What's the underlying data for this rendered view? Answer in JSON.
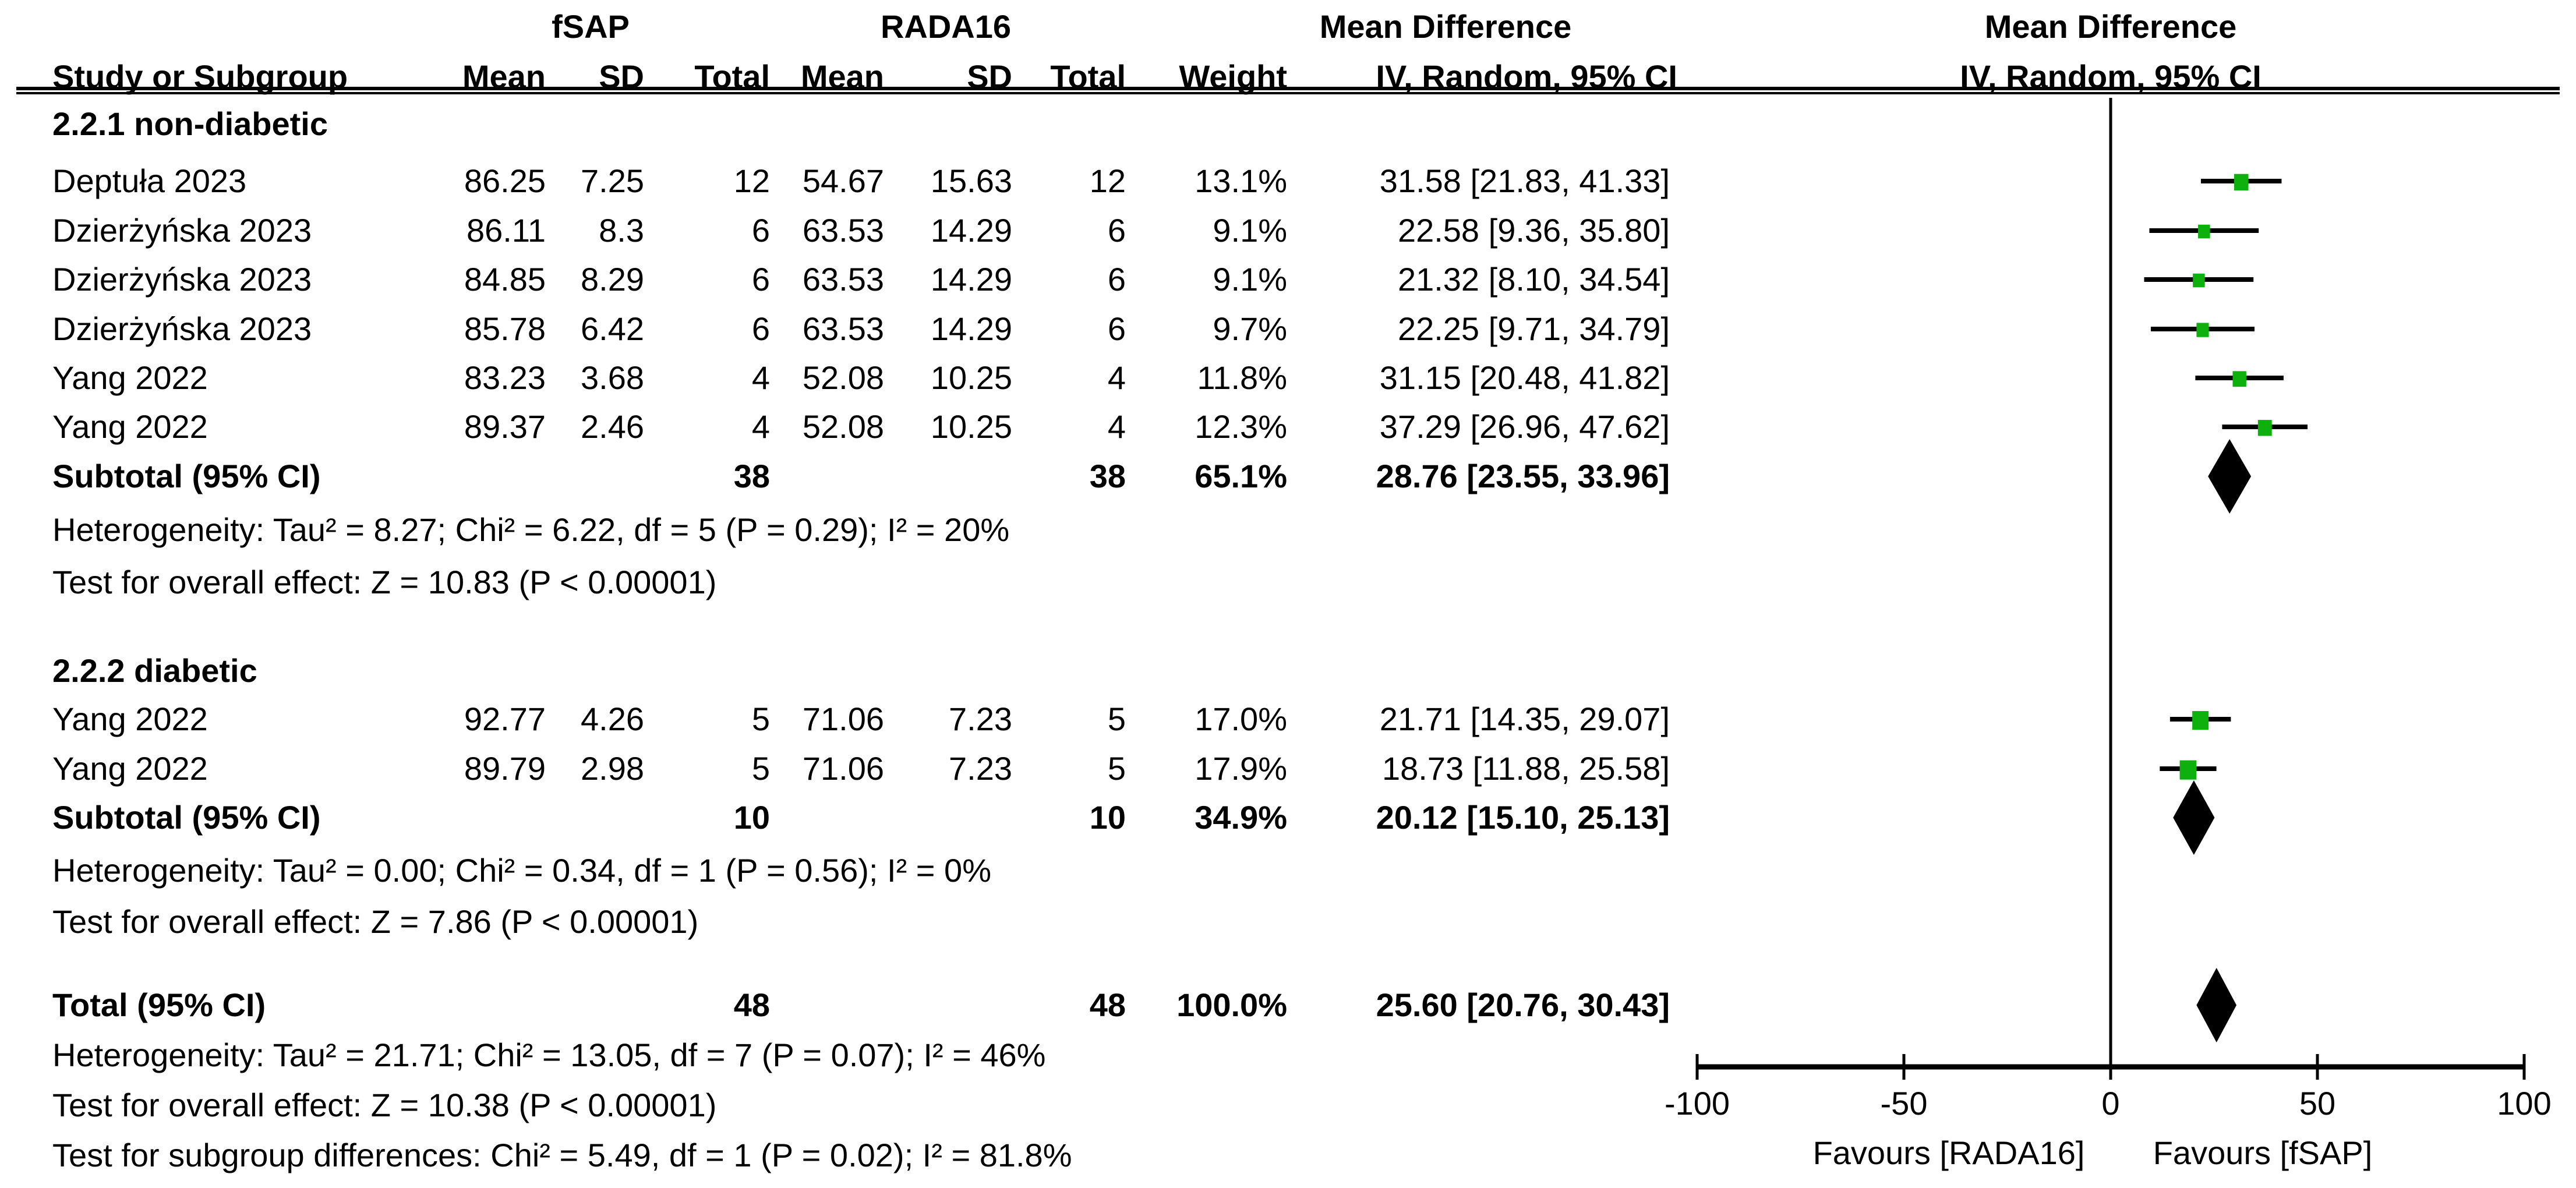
{
  "colors": {
    "effect_square": "#0DB00D",
    "diamond": "#000000",
    "line": "#000000",
    "text": "#000000",
    "background": "#FFFFFF"
  },
  "table_header": {
    "study_col": "Study or Subgroup",
    "group1_name": "fSAP",
    "group2_name": "RADA16",
    "mean_col": "Mean",
    "sd_col": "SD",
    "total_col": "Total",
    "mean_col2": "Mean",
    "sd_col2": "SD",
    "total_col2": "Total",
    "weight_col": "Weight",
    "effect_col_title": "Mean Difference",
    "effect_col_subtitle": "IV, Random, 95% CI",
    "plot_col_title": "Mean Difference",
    "plot_col_subtitle": "IV, Random, 95% CI"
  },
  "axis": {
    "min": -100,
    "max": 100,
    "ticks": [
      -100,
      -50,
      0,
      50,
      100
    ],
    "tick_labels": [
      "-100",
      "-50",
      "0",
      "50",
      "100"
    ],
    "favours_left": "Favours [RADA16]",
    "favours_right": "Favours [fSAP]"
  },
  "chart_data": {
    "type": "scatter",
    "subtype": "forest_plot",
    "effect_measure": "Mean Difference, IV, Random, 95% CI",
    "xlim": [
      -100,
      100
    ],
    "x_ticks": [
      -100,
      -50,
      0,
      50,
      100
    ],
    "groups": [
      {
        "title": "2.2.1 non-diabetic",
        "studies": [
          {
            "study": "Deptuła 2023",
            "mean1": "86.25",
            "sd1": "7.25",
            "n1": "12",
            "mean2": "54.67",
            "sd2": "15.63",
            "n2": "12",
            "weight": "13.1%",
            "ci_text": "31.58 [21.83, 41.33]",
            "md": 31.58,
            "lo": 21.83,
            "hi": 41.33,
            "w": 13.1
          },
          {
            "study": "Dzierżyńska 2023",
            "mean1": "86.11",
            "sd1": "8.3",
            "n1": "6",
            "mean2": "63.53",
            "sd2": "14.29",
            "n2": "6",
            "weight": "9.1%",
            "ci_text": "22.58 [9.36, 35.80]",
            "md": 22.58,
            "lo": 9.36,
            "hi": 35.8,
            "w": 9.1
          },
          {
            "study": "Dzierżyńska 2023",
            "mean1": "84.85",
            "sd1": "8.29",
            "n1": "6",
            "mean2": "63.53",
            "sd2": "14.29",
            "n2": "6",
            "weight": "9.1%",
            "ci_text": "21.32 [8.10, 34.54]",
            "md": 21.32,
            "lo": 8.1,
            "hi": 34.54,
            "w": 9.1
          },
          {
            "study": "Dzierżyńska 2023",
            "mean1": "85.78",
            "sd1": "6.42",
            "n1": "6",
            "mean2": "63.53",
            "sd2": "14.29",
            "n2": "6",
            "weight": "9.7%",
            "ci_text": "22.25 [9.71, 34.79]",
            "md": 22.25,
            "lo": 9.71,
            "hi": 34.79,
            "w": 9.7
          },
          {
            "study": "Yang 2022",
            "mean1": "83.23",
            "sd1": "3.68",
            "n1": "4",
            "mean2": "52.08",
            "sd2": "10.25",
            "n2": "4",
            "weight": "11.8%",
            "ci_text": "31.15 [20.48, 41.82]",
            "md": 31.15,
            "lo": 20.48,
            "hi": 41.82,
            "w": 11.8
          },
          {
            "study": "Yang 2022",
            "mean1": "89.37",
            "sd1": "2.46",
            "n1": "4",
            "mean2": "52.08",
            "sd2": "10.25",
            "n2": "4",
            "weight": "12.3%",
            "ci_text": "37.29 [26.96, 47.62]",
            "md": 37.29,
            "lo": 26.96,
            "hi": 47.62,
            "w": 12.3
          }
        ],
        "subtotal": {
          "label": "Subtotal (95% CI)",
          "n1": "38",
          "n2": "38",
          "weight": "65.1%",
          "ci_text": "28.76 [23.55, 33.96]",
          "md": 28.76,
          "lo": 23.55,
          "hi": 33.96
        },
        "heterogeneity": "Heterogeneity: Tau² = 8.27; Chi² = 6.22, df = 5 (P = 0.29); I² = 20%",
        "overall_effect": "Test for overall effect: Z = 10.83 (P < 0.00001)"
      },
      {
        "title": "2.2.2 diabetic",
        "studies": [
          {
            "study": "Yang 2022",
            "mean1": "92.77",
            "sd1": "4.26",
            "n1": "5",
            "mean2": "71.06",
            "sd2": "7.23",
            "n2": "5",
            "weight": "17.0%",
            "ci_text": "21.71 [14.35, 29.07]",
            "md": 21.71,
            "lo": 14.35,
            "hi": 29.07,
            "w": 17.0
          },
          {
            "study": "Yang 2022",
            "mean1": "89.79",
            "sd1": "2.98",
            "n1": "5",
            "mean2": "71.06",
            "sd2": "7.23",
            "n2": "5",
            "weight": "17.9%",
            "ci_text": "18.73 [11.88, 25.58]",
            "md": 18.73,
            "lo": 11.88,
            "hi": 25.58,
            "w": 17.9
          }
        ],
        "subtotal": {
          "label": "Subtotal (95% CI)",
          "n1": "10",
          "n2": "10",
          "weight": "34.9%",
          "ci_text": "20.12 [15.10, 25.13]",
          "md": 20.12,
          "lo": 15.1,
          "hi": 25.13
        },
        "heterogeneity": "Heterogeneity: Tau² = 0.00; Chi² = 0.34, df = 1 (P = 0.56); I² = 0%",
        "overall_effect": "Test for overall effect: Z = 7.86 (P < 0.00001)"
      }
    ],
    "total": {
      "label": "Total (95% CI)",
      "n1": "48",
      "n2": "48",
      "weight": "100.0%",
      "ci_text": "25.60 [20.76, 30.43]",
      "md": 25.6,
      "lo": 20.76,
      "hi": 30.43
    },
    "footer": {
      "heterogeneity": "Heterogeneity: Tau² = 21.71; Chi² = 13.05, df = 7 (P = 0.07); I² = 46%",
      "overall_effect": "Test for overall effect: Z = 10.38 (P < 0.00001)",
      "subgroup_differences": "Test for subgroup differences: Chi² = 5.49, df = 1 (P = 0.02); I² = 81.8%"
    }
  }
}
